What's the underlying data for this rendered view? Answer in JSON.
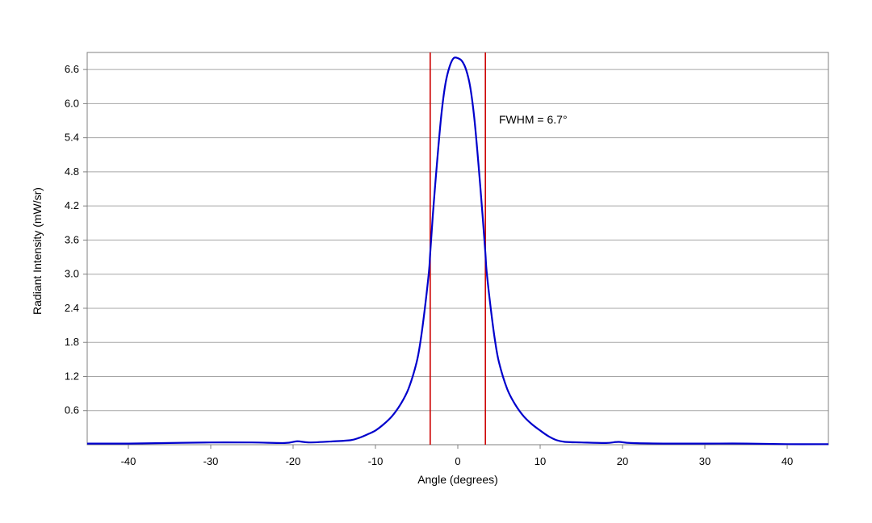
{
  "chart_data": {
    "type": "line",
    "title": "",
    "xlabel": "Angle (degrees)",
    "ylabel": "Radiant Intensity (mW/sr)",
    "xlim": [
      -45,
      45
    ],
    "ylim": [
      0,
      6.9
    ],
    "xticks": [
      -40,
      -30,
      -20,
      -10,
      0,
      10,
      20,
      30,
      40
    ],
    "yticks": [
      0.6,
      1.2,
      1.8,
      2.4,
      3.0,
      3.6,
      4.2,
      4.8,
      5.4,
      6.0,
      6.6
    ],
    "ytick_labels": [
      "0.6",
      "1.2",
      "1.8",
      "2.4",
      "3.0",
      "3.6",
      "4.2",
      "4.8",
      "5.4",
      "6.0",
      "6.6"
    ],
    "grid": "horizontal",
    "legend": "none",
    "series": [
      {
        "color": "#0000cc",
        "x": [
          -45,
          -40,
          -35,
          -30,
          -25,
          -21,
          -19.5,
          -18,
          -15,
          -13,
          -12,
          -11,
          -10,
          -9,
          -8,
          -7,
          -6,
          -5,
          -4.5,
          -4,
          -3.5,
          -3.35,
          -3,
          -2.5,
          -2,
          -1.5,
          -1,
          -0.5,
          0,
          0.5,
          1,
          1.5,
          2,
          2.5,
          3,
          3.35,
          3.5,
          4,
          4.5,
          5,
          6,
          7,
          8,
          9,
          10,
          11,
          12,
          13,
          15,
          18,
          19.5,
          21,
          25,
          30,
          35,
          40,
          45
        ],
        "y": [
          0.02,
          0.02,
          0.03,
          0.04,
          0.04,
          0.03,
          0.06,
          0.04,
          0.06,
          0.08,
          0.12,
          0.18,
          0.25,
          0.36,
          0.5,
          0.7,
          0.98,
          1.45,
          1.85,
          2.4,
          3.05,
          3.37,
          4.1,
          5.0,
          5.8,
          6.35,
          6.65,
          6.8,
          6.8,
          6.75,
          6.6,
          6.3,
          5.75,
          4.95,
          4.05,
          3.37,
          3.05,
          2.4,
          1.85,
          1.45,
          0.98,
          0.7,
          0.5,
          0.36,
          0.25,
          0.15,
          0.08,
          0.05,
          0.04,
          0.03,
          0.05,
          0.03,
          0.02,
          0.02,
          0.02,
          0.01,
          0.01
        ]
      }
    ],
    "markers": [
      {
        "type": "vline",
        "x": -3.35,
        "color": "#cc0000"
      },
      {
        "type": "vline",
        "x": 3.35,
        "color": "#cc0000"
      }
    ],
    "annotations": [
      {
        "text": "FWHM = 6.7°",
        "x": 5,
        "y": 5.65
      }
    ]
  }
}
